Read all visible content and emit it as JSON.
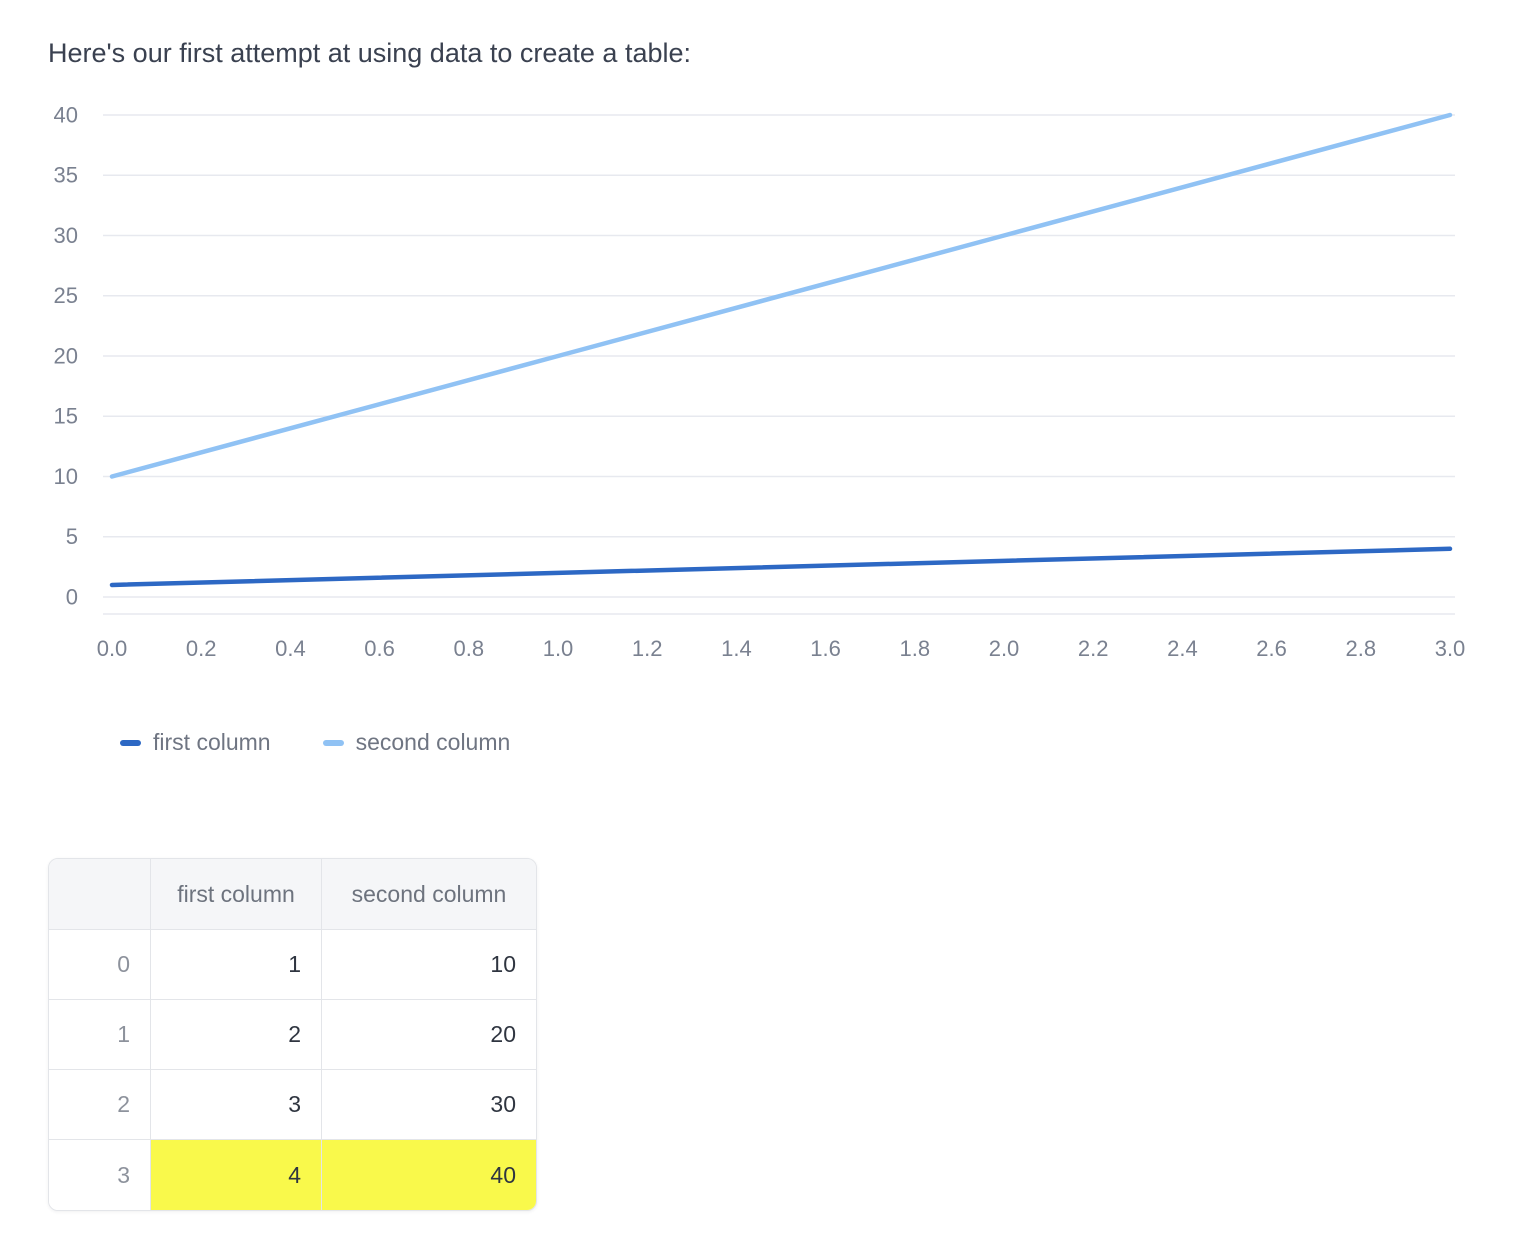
{
  "title": "Here's our first attempt at using data to create a table:",
  "chart_data": {
    "type": "line",
    "x": [
      0,
      1,
      2,
      3
    ],
    "series": [
      {
        "name": "first column",
        "values": [
          1,
          2,
          3,
          4
        ],
        "color": "#2d68c4"
      },
      {
        "name": "second column",
        "values": [
          10,
          20,
          30,
          40
        ],
        "color": "#90c2f4"
      }
    ],
    "x_ticks": [
      "0.0",
      "0.2",
      "0.4",
      "0.6",
      "0.8",
      "1.0",
      "1.2",
      "1.4",
      "1.6",
      "1.8",
      "2.0",
      "2.2",
      "2.4",
      "2.6",
      "2.8",
      "3.0"
    ],
    "y_ticks": [
      0,
      5,
      10,
      15,
      20,
      25,
      30,
      35,
      40
    ],
    "xlim": [
      0,
      3
    ],
    "ylim": [
      0,
      40
    ],
    "title": "",
    "xlabel": "",
    "ylabel": "",
    "grid": true,
    "grid_color": "#e7e9ef",
    "tick_label_color": "#7a8190",
    "legend_position": "bottom-left"
  },
  "table": {
    "headers": [
      "",
      "first column",
      "second column"
    ],
    "rows": [
      {
        "index": "0",
        "first": "1",
        "second": "10",
        "highlight": false
      },
      {
        "index": "1",
        "first": "2",
        "second": "20",
        "highlight": false
      },
      {
        "index": "2",
        "first": "3",
        "second": "30",
        "highlight": false
      },
      {
        "index": "3",
        "first": "4",
        "second": "40",
        "highlight": true
      }
    ],
    "highlight_color": "#f9f94b"
  }
}
